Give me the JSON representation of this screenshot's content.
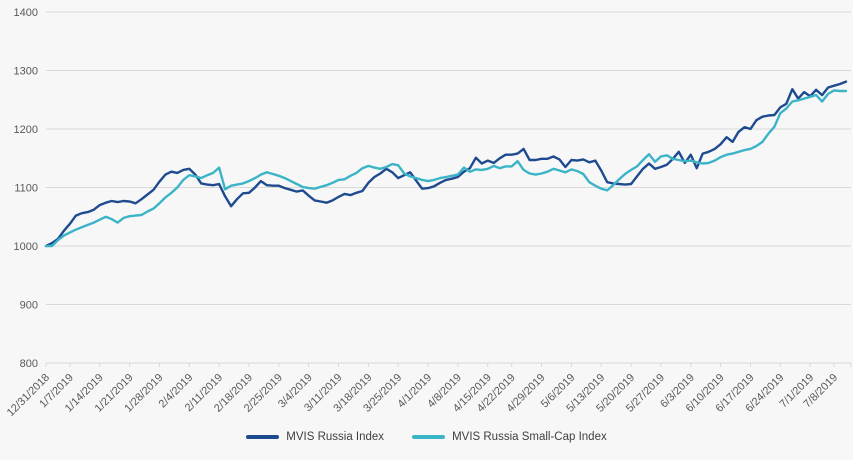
{
  "chart_data": {
    "type": "line",
    "title": "",
    "xlabel": "",
    "ylabel": "",
    "ylim": [
      800,
      1400
    ],
    "y_ticks": [
      800,
      900,
      1000,
      1100,
      1200,
      1300,
      1400
    ],
    "grid": true,
    "grid_color": "#d9d9d9",
    "axis_label_color": "#595959",
    "background_color": "#f7f7f7",
    "legend_position": "bottom",
    "x_tick_labels": [
      "12/31/2018",
      "1/7/2019",
      "1/14/2019",
      "1/21/2019",
      "1/28/2019",
      "2/4/2019",
      "2/11/2019",
      "2/18/2019",
      "2/25/2019",
      "3/4/2019",
      "3/11/2019",
      "3/18/2019",
      "3/25/2019",
      "4/1/2019",
      "4/8/2019",
      "4/15/2019",
      "4/22/2019",
      "4/29/2019",
      "5/6/2019",
      "5/13/2019",
      "5/20/2019",
      "5/27/2019",
      "6/3/2019",
      "6/10/2019",
      "6/17/2019",
      "6/24/2019",
      "7/1/2019",
      "7/8/2019"
    ],
    "x": [
      "12/31/2018",
      "1/2/2019",
      "1/3/2019",
      "1/4/2019",
      "1/7/2019",
      "1/8/2019",
      "1/9/2019",
      "1/10/2019",
      "1/11/2019",
      "1/14/2019",
      "1/15/2019",
      "1/16/2019",
      "1/17/2019",
      "1/18/2019",
      "1/21/2019",
      "1/22/2019",
      "1/23/2019",
      "1/24/2019",
      "1/25/2019",
      "1/28/2019",
      "1/29/2019",
      "1/30/2019",
      "1/31/2019",
      "2/1/2019",
      "2/4/2019",
      "2/5/2019",
      "2/6/2019",
      "2/7/2019",
      "2/8/2019",
      "2/11/2019",
      "2/12/2019",
      "2/13/2019",
      "2/14/2019",
      "2/15/2019",
      "2/18/2019",
      "2/19/2019",
      "2/20/2019",
      "2/21/2019",
      "2/22/2019",
      "2/25/2019",
      "2/26/2019",
      "2/27/2019",
      "2/28/2019",
      "3/1/2019",
      "3/4/2019",
      "3/5/2019",
      "3/6/2019",
      "3/7/2019",
      "3/8/2019",
      "3/11/2019",
      "3/12/2019",
      "3/13/2019",
      "3/14/2019",
      "3/15/2019",
      "3/18/2019",
      "3/19/2019",
      "3/20/2019",
      "3/21/2019",
      "3/22/2019",
      "3/25/2019",
      "3/26/2019",
      "3/27/2019",
      "3/28/2019",
      "3/29/2019",
      "4/1/2019",
      "4/2/2019",
      "4/3/2019",
      "4/4/2019",
      "4/5/2019",
      "4/8/2019",
      "4/9/2019",
      "4/10/2019",
      "4/11/2019",
      "4/12/2019",
      "4/15/2019",
      "4/16/2019",
      "4/17/2019",
      "4/18/2019",
      "4/22/2019",
      "4/23/2019",
      "4/24/2019",
      "4/25/2019",
      "4/26/2019",
      "4/29/2019",
      "4/30/2019",
      "5/1/2019",
      "5/2/2019",
      "5/3/2019",
      "5/6/2019",
      "5/7/2019",
      "5/8/2019",
      "5/9/2019",
      "5/10/2019",
      "5/13/2019",
      "5/14/2019",
      "5/15/2019",
      "5/16/2019",
      "5/17/2019",
      "5/20/2019",
      "5/21/2019",
      "5/22/2019",
      "5/23/2019",
      "5/24/2019",
      "5/27/2019",
      "5/28/2019",
      "5/29/2019",
      "5/30/2019",
      "5/31/2019",
      "6/3/2019",
      "6/4/2019",
      "6/5/2019",
      "6/6/2019",
      "6/7/2019",
      "6/10/2019",
      "6/11/2019",
      "6/12/2019",
      "6/13/2019",
      "6/14/2019",
      "6/17/2019",
      "6/18/2019",
      "6/19/2019",
      "6/20/2019",
      "6/21/2019",
      "6/24/2019",
      "6/25/2019",
      "6/26/2019",
      "6/27/2019",
      "6/28/2019",
      "7/1/2019",
      "7/2/2019",
      "7/3/2019",
      "7/5/2019",
      "7/8/2019",
      "7/9/2019",
      "7/10/2019"
    ],
    "series": [
      {
        "name": "MVIS Russia Index",
        "color": "#1e4b8f",
        "values": [
          1000,
          1005,
          1012,
          1026,
          1038,
          1052,
          1056,
          1058,
          1062,
          1070,
          1074,
          1077,
          1075,
          1077,
          1076,
          1073,
          1080,
          1088,
          1096,
          1110,
          1122,
          1127,
          1125,
          1130,
          1132,
          1122,
          1107,
          1105,
          1104,
          1106,
          1085,
          1068,
          1080,
          1090,
          1091,
          1100,
          1111,
          1104,
          1103,
          1103,
          1099,
          1096,
          1093,
          1095,
          1086,
          1078,
          1076,
          1074,
          1078,
          1084,
          1089,
          1087,
          1091,
          1094,
          1108,
          1118,
          1124,
          1132,
          1126,
          1116,
          1121,
          1126,
          1112,
          1098,
          1099,
          1102,
          1108,
          1113,
          1115,
          1118,
          1127,
          1133,
          1151,
          1141,
          1146,
          1142,
          1150,
          1156,
          1156,
          1158,
          1166,
          1147,
          1147,
          1149,
          1149,
          1153,
          1148,
          1135,
          1147,
          1146,
          1148,
          1143,
          1146,
          1129,
          1109,
          1107,
          1106,
          1105,
          1106,
          1119,
          1132,
          1141,
          1132,
          1135,
          1139,
          1149,
          1161,
          1142,
          1156,
          1133,
          1158,
          1161,
          1166,
          1174,
          1186,
          1178,
          1195,
          1203,
          1200,
          1215,
          1221,
          1223,
          1224,
          1237,
          1243,
          1268,
          1252,
          1263,
          1256,
          1267,
          1258,
          1271,
          1274,
          1277,
          1281
        ]
      },
      {
        "name": "MVIS Russia Small-Cap Index",
        "color": "#3bb4c8",
        "values": [
          1000,
          1000,
          1010,
          1018,
          1023,
          1028,
          1032,
          1036,
          1040,
          1045,
          1050,
          1046,
          1040,
          1048,
          1051,
          1052,
          1053,
          1059,
          1064,
          1073,
          1083,
          1091,
          1100,
          1113,
          1121,
          1119,
          1116,
          1121,
          1125,
          1134,
          1097,
          1103,
          1105,
          1107,
          1111,
          1116,
          1122,
          1126,
          1123,
          1120,
          1116,
          1111,
          1106,
          1101,
          1099,
          1098,
          1101,
          1104,
          1108,
          1113,
          1114,
          1120,
          1125,
          1133,
          1137,
          1134,
          1132,
          1135,
          1140,
          1138,
          1124,
          1119,
          1116,
          1113,
          1111,
          1113,
          1116,
          1118,
          1120,
          1122,
          1134,
          1127,
          1131,
          1130,
          1132,
          1137,
          1133,
          1136,
          1136,
          1145,
          1130,
          1124,
          1122,
          1124,
          1127,
          1132,
          1129,
          1126,
          1131,
          1128,
          1123,
          1109,
          1103,
          1098,
          1095,
          1104,
          1114,
          1123,
          1130,
          1136,
          1147,
          1157,
          1144,
          1153,
          1155,
          1149,
          1147,
          1145,
          1146,
          1143,
          1141,
          1142,
          1146,
          1152,
          1156,
          1158,
          1161,
          1164,
          1166,
          1171,
          1178,
          1192,
          1204,
          1227,
          1235,
          1247,
          1249,
          1252,
          1255,
          1258,
          1247,
          1260,
          1266,
          1265,
          1265
        ]
      }
    ]
  }
}
